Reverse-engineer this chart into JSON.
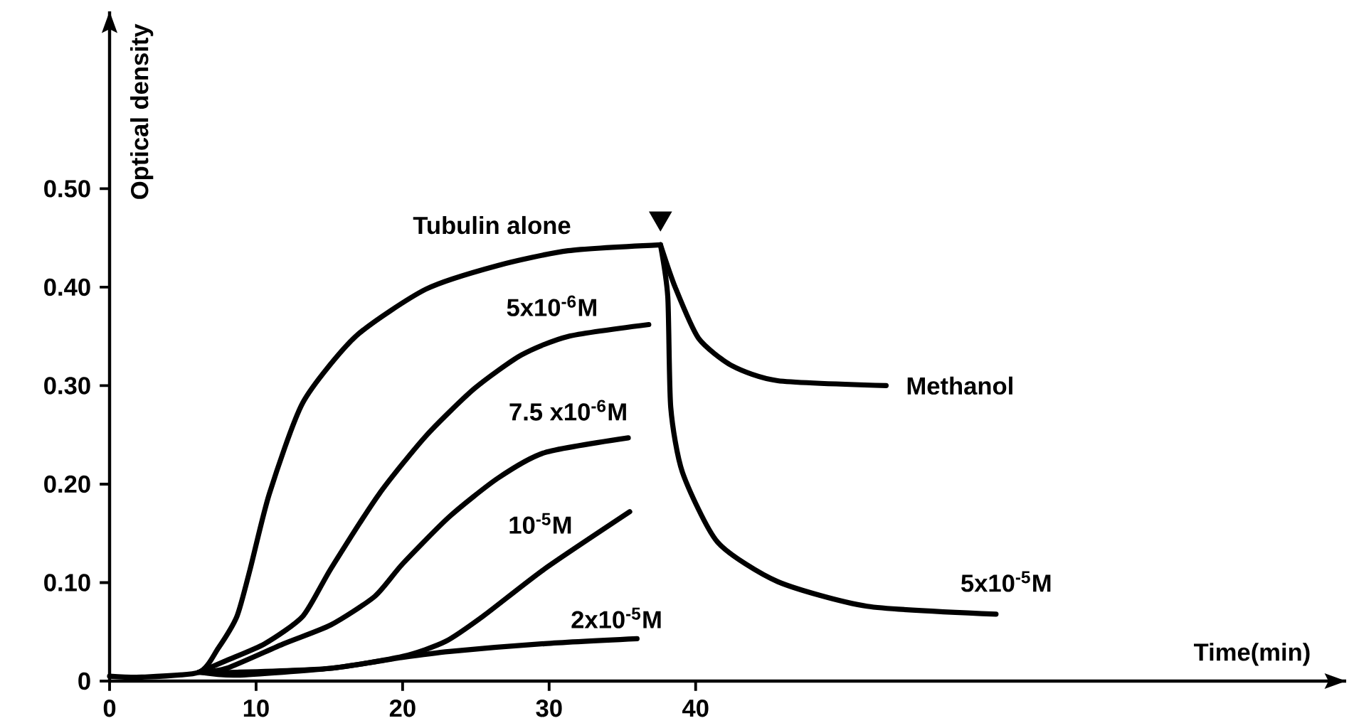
{
  "chart_data": {
    "type": "line",
    "xlabel": "Time(min)",
    "ylabel": "Optical density",
    "xlim": [
      0,
      84.4
    ],
    "ylim": [
      0,
      0.68
    ],
    "xticks": [
      0,
      10,
      20,
      30,
      40
    ],
    "yticks": [
      0,
      {
        "value": 0.1,
        "label": "0.10"
      },
      {
        "value": 0.2,
        "label": "0.20"
      },
      {
        "value": 0.3,
        "label": "0.30"
      },
      {
        "value": 0.4,
        "label": "0.40"
      },
      {
        "value": 0.5,
        "label": "0.50"
      }
    ],
    "grid": false,
    "legend": false,
    "marker": "none",
    "line_style": "solid",
    "series": [
      {
        "name": "Tubulin   alone",
        "color": "#000000",
        "x": [
          0,
          2.2,
          6.1,
          7.4,
          8.7,
          9.6,
          10.9,
          13.2,
          16.8,
          21.6,
          26.5,
          31.3,
          37.6
        ],
        "values": [
          0.005,
          0.004,
          0.009,
          0.033,
          0.066,
          0.114,
          0.19,
          0.283,
          0.35,
          0.398,
          0.422,
          0.437,
          0.443
        ]
      },
      {
        "name": "5x10$^{-6}$M",
        "color": "#000000",
        "x": [
          6.1,
          8.0,
          10.6,
          13.2,
          15.1,
          18.4,
          21.6,
          24.9,
          28.1,
          31.3,
          36.8
        ],
        "values": [
          0.009,
          0.021,
          0.038,
          0.066,
          0.114,
          0.19,
          0.249,
          0.297,
          0.331,
          0.35,
          0.362
        ]
      },
      {
        "name": "7.5 x10$^{-6}$M",
        "color": "#000000",
        "x": [
          6.1,
          8.0,
          11.9,
          15.1,
          18.1,
          20.0,
          23.2,
          26.5,
          29.7,
          35.4
        ],
        "values": [
          0.009,
          0.013,
          0.038,
          0.057,
          0.086,
          0.119,
          0.167,
          0.206,
          0.232,
          0.247
        ]
      },
      {
        "name": "10$^{-5}$M",
        "color": "#000000",
        "x": [
          6.1,
          8.7,
          15.1,
          20.0,
          22.9,
          25.5,
          29.7,
          35.5
        ],
        "values": [
          0.009,
          0.009,
          0.013,
          0.025,
          0.04,
          0.066,
          0.114,
          0.172
        ]
      },
      {
        "name": "2x10$^{-5}$M",
        "color": "#000000",
        "x": [
          6.1,
          8.7,
          15.1,
          20.0,
          23.2,
          29.7,
          36.0
        ],
        "values": [
          0.009,
          0.006,
          0.013,
          0.024,
          0.03,
          0.038,
          0.043
        ]
      },
      {
        "name": "Methanol",
        "color": "#000000",
        "x": [
          37.6,
          38.6,
          40.2,
          42.5,
          45.6,
          53.0
        ],
        "values": [
          0.443,
          0.4,
          0.348,
          0.32,
          0.305,
          0.3
        ]
      },
      {
        "type": "scatter",
        "marker": "triangle",
        "color": "#000000",
        "x": [
          37.6
        ],
        "values": [
          0.47
        ]
      },
      {
        "name": "5x10$^{-5}$M",
        "color": "#000000",
        "x": [
          37.6,
          38.1,
          38.3,
          39.1,
          41.5,
          45.6,
          51.7,
          60.5
        ],
        "values": [
          0.443,
          0.39,
          0.278,
          0.212,
          0.141,
          0.101,
          0.076,
          0.068
        ]
      }
    ]
  }
}
